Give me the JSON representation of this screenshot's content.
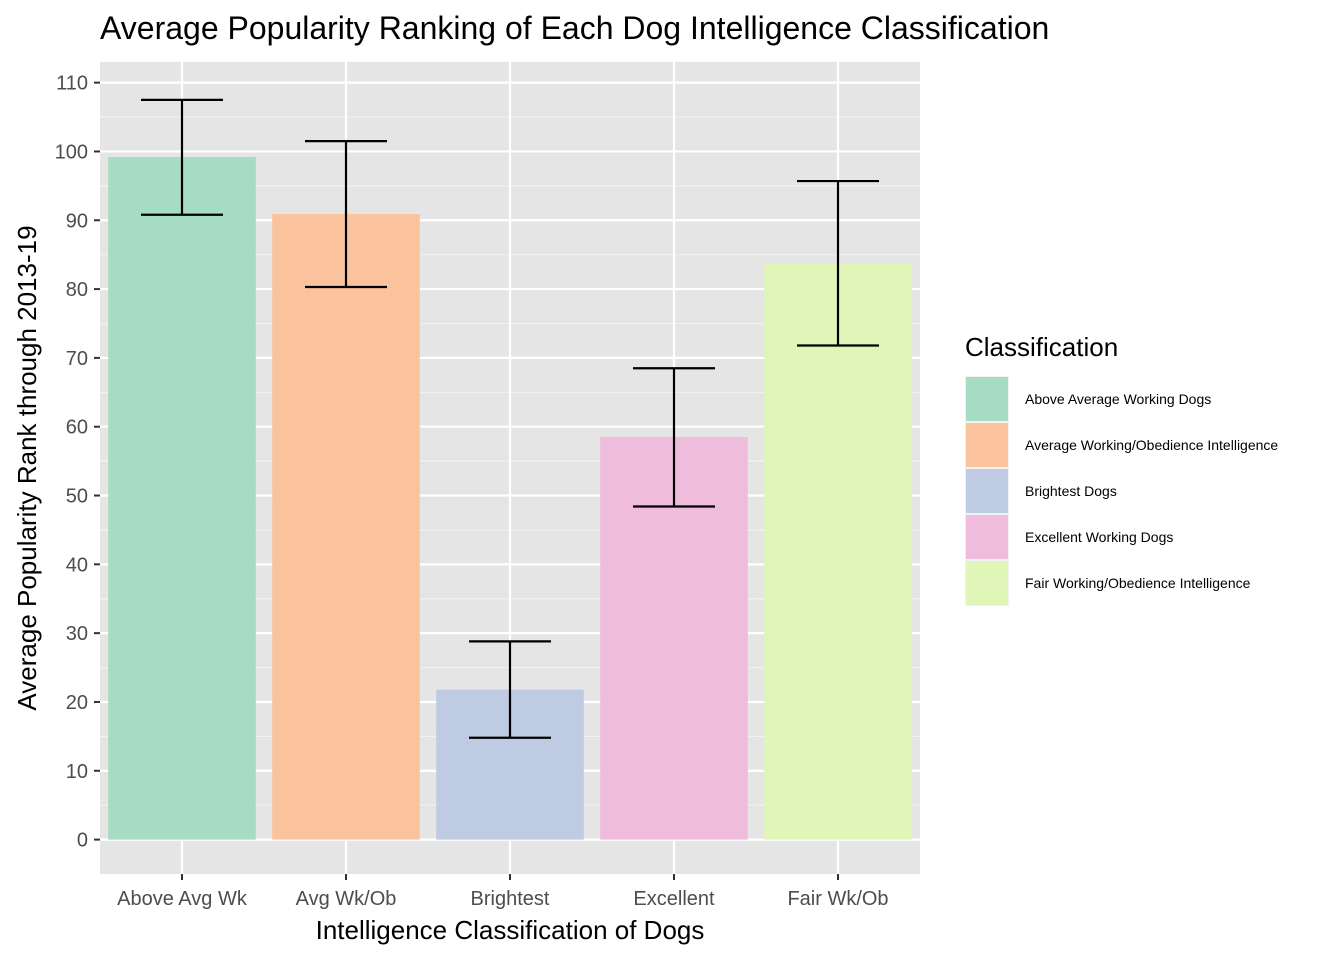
{
  "chart_data": {
    "type": "bar",
    "title": "Average Popularity Ranking of Each Dog Intelligence Classification",
    "xlabel": "Intelligence Classification of Dogs",
    "ylabel": "Average Popularity Rank through 2013-19",
    "categories": [
      "Above Avg Wk",
      "Avg Wk/Ob",
      "Brightest",
      "Excellent",
      "Fair Wk/Ob"
    ],
    "values": [
      99.2,
      90.9,
      21.8,
      58.5,
      83.7
    ],
    "error_low": [
      90.8,
      80.3,
      14.8,
      48.4,
      71.8
    ],
    "error_high": [
      107.5,
      101.5,
      28.8,
      68.5,
      95.7
    ],
    "colors": [
      "#a6dcc2",
      "#fbc39d",
      "#bfcbe2",
      "#efbcdc",
      "#e0f5b8"
    ],
    "ylim": [
      -5,
      113
    ],
    "yticks": [
      0,
      10,
      20,
      30,
      40,
      50,
      60,
      70,
      80,
      90,
      100,
      110
    ],
    "grid": true,
    "legend": {
      "title": "Classification",
      "position": "right",
      "entries": [
        "Above Average Working Dogs",
        "Average Working/Obedience Intelligence",
        "Brightest Dogs",
        "Excellent Working Dogs",
        "Fair Working/Obedience Intelligence"
      ]
    }
  }
}
